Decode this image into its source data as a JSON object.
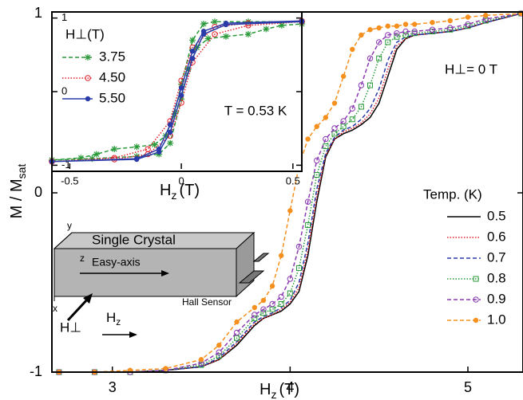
{
  "chart_data": [
    {
      "type": "line",
      "xlabel": {
        "text": "H",
        "sub": "z",
        "unit": "(T)"
      },
      "ylabel": {
        "text": "M / M",
        "sub": "sat"
      },
      "xlim": [
        2.66,
        5.31
      ],
      "ylim": [
        -1,
        1
      ],
      "xticks": [
        3,
        4,
        5
      ],
      "yticks": [
        -1,
        0,
        1
      ],
      "annotation": "H⊥= 0 T",
      "legend_title": "Temp. (K)",
      "diagram": {
        "crystal": "Single Crystal",
        "axis": "Easy-axis",
        "sensor": "Hall Sensor",
        "y": "y",
        "z": "z",
        "x": "x",
        "hperp": "H⊥",
        "hz": "H",
        "hz_sub": "z"
      },
      "x": [
        2.7,
        2.9,
        3.1,
        3.3,
        3.5,
        3.6,
        3.7,
        3.8,
        3.85,
        3.9,
        3.95,
        4.0,
        4.05,
        4.1,
        4.15,
        4.2,
        4.25,
        4.3,
        4.35,
        4.4,
        4.45,
        4.5,
        4.55,
        4.6,
        4.65,
        4.7,
        4.8,
        4.9,
        5.0,
        5.1,
        5.3
      ],
      "series": [
        {
          "name": "0.5",
          "color": "#000000",
          "dash": "solid",
          "marker": "none",
          "values": [
            -1,
            -1,
            -1,
            -0.99,
            -0.97,
            -0.93,
            -0.85,
            -0.74,
            -0.7,
            -0.68,
            -0.66,
            -0.62,
            -0.55,
            -0.35,
            -0.05,
            0.2,
            0.3,
            0.33,
            0.35,
            0.38,
            0.42,
            0.5,
            0.65,
            0.8,
            0.86,
            0.88,
            0.89,
            0.9,
            0.92,
            0.95,
            1.0
          ]
        },
        {
          "name": "0.6",
          "color": "#e0202a",
          "dash": "dotted",
          "marker": "none",
          "values": [
            -1,
            -1,
            -1,
            -0.99,
            -0.97,
            -0.93,
            -0.84,
            -0.73,
            -0.7,
            -0.68,
            -0.65,
            -0.61,
            -0.53,
            -0.32,
            -0.02,
            0.21,
            0.3,
            0.34,
            0.36,
            0.39,
            0.44,
            0.53,
            0.69,
            0.82,
            0.86,
            0.88,
            0.89,
            0.9,
            0.92,
            0.95,
            1.0
          ]
        },
        {
          "name": "0.7",
          "color": "#2a3aa8",
          "dash": "dashed",
          "marker": "none",
          "values": [
            -1,
            -1,
            -1,
            -0.99,
            -0.97,
            -0.92,
            -0.83,
            -0.72,
            -0.69,
            -0.67,
            -0.64,
            -0.6,
            -0.5,
            -0.28,
            0.02,
            0.22,
            0.31,
            0.35,
            0.37,
            0.41,
            0.47,
            0.58,
            0.74,
            0.84,
            0.87,
            0.88,
            0.89,
            0.9,
            0.92,
            0.95,
            1.0
          ]
        },
        {
          "name": "0.8",
          "color": "#2a9a3a",
          "dash": "dotted",
          "marker": "square",
          "values": [
            -1,
            -1,
            -1,
            -0.99,
            -0.96,
            -0.91,
            -0.81,
            -0.7,
            -0.67,
            -0.65,
            -0.62,
            -0.56,
            -0.42,
            -0.18,
            0.1,
            0.26,
            0.33,
            0.37,
            0.41,
            0.48,
            0.6,
            0.75,
            0.84,
            0.87,
            0.88,
            0.89,
            0.9,
            0.91,
            0.93,
            0.96,
            1.0
          ]
        },
        {
          "name": "0.9",
          "color": "#8a3ab0",
          "dash": "dashed",
          "marker": "circle",
          "values": [
            -1,
            -1,
            -1,
            -0.99,
            -0.95,
            -0.89,
            -0.78,
            -0.68,
            -0.65,
            -0.62,
            -0.58,
            -0.48,
            -0.3,
            -0.05,
            0.18,
            0.3,
            0.36,
            0.4,
            0.47,
            0.6,
            0.75,
            0.84,
            0.88,
            0.89,
            0.9,
            0.9,
            0.91,
            0.92,
            0.94,
            0.97,
            1.0
          ]
        },
        {
          "name": "1.0",
          "color": "#f5901e",
          "dash": "dashed",
          "marker": "dot",
          "values": [
            -1,
            -1,
            -0.99,
            -0.98,
            -0.93,
            -0.85,
            -0.72,
            -0.64,
            -0.6,
            -0.52,
            -0.35,
            -0.1,
            0.15,
            0.3,
            0.37,
            0.42,
            0.5,
            0.65,
            0.8,
            0.88,
            0.91,
            0.92,
            0.93,
            0.93,
            0.94,
            0.94,
            0.95,
            0.96,
            0.98,
            0.99,
            1.0
          ]
        }
      ]
    },
    {
      "type": "line",
      "xlabel": {
        "text": "H",
        "sub": "z",
        "unit": "(T)"
      },
      "xlim": [
        -0.58,
        0.54
      ],
      "ylim": [
        -1.05,
        1.05
      ],
      "xticks": [
        -0.5,
        0,
        0.5
      ],
      "yticks": [
        -1,
        0,
        1
      ],
      "annotation": "T = 0.53 K",
      "legend_title": "H⊥(T)",
      "series": [
        {
          "name": "3.75",
          "color": "#2a9a3a",
          "dash": "dashed",
          "marker": "star",
          "x": [
            -0.58,
            -0.4,
            -0.2,
            -0.1,
            -0.05,
            0,
            0.03,
            0.07,
            0.12,
            0.2,
            0.3,
            0.38,
            0.45,
            0.54,
            0.54,
            0.3,
            0.15,
            0.1,
            0.05,
            0,
            -0.03,
            -0.07,
            -0.12,
            -0.2,
            -0.3,
            -0.38,
            -0.45,
            -0.58
          ],
          "values": [
            -0.93,
            -0.91,
            -0.88,
            -0.85,
            -0.7,
            -0.1,
            0.3,
            0.6,
            0.72,
            0.75,
            0.78,
            0.85,
            0.9,
            0.92,
            0.95,
            0.95,
            0.95,
            0.92,
            0.7,
            0.1,
            -0.3,
            -0.6,
            -0.72,
            -0.75,
            -0.78,
            -0.85,
            -0.9,
            -0.93
          ]
        },
        {
          "name": "4.50",
          "color": "#e0202a",
          "dash": "dotted",
          "marker": "circle",
          "x": [
            -0.58,
            -0.3,
            -0.15,
            -0.05,
            0,
            0.05,
            0.15,
            0.3,
            0.54,
            0.54,
            0.3,
            0.15,
            0.05,
            0,
            -0.05,
            -0.15,
            -0.3,
            -0.58
          ],
          "values": [
            -0.95,
            -0.92,
            -0.85,
            -0.6,
            -0.15,
            0.4,
            0.78,
            0.9,
            0.95,
            0.96,
            0.93,
            0.88,
            0.6,
            0.15,
            -0.4,
            -0.78,
            -0.9,
            -0.95
          ]
        },
        {
          "name": "5.50",
          "color": "#2a3aa8",
          "dash": "solid",
          "marker": "dot",
          "x": [
            -0.58,
            -0.2,
            -0.1,
            -0.05,
            0,
            0.05,
            0.1,
            0.2,
            0.54,
            0.54,
            0.2,
            0.1,
            0.05,
            0,
            -0.05,
            -0.1,
            -0.2,
            -0.58
          ],
          "values": [
            -0.95,
            -0.92,
            -0.82,
            -0.55,
            -0.05,
            0.45,
            0.78,
            0.91,
            0.95,
            0.96,
            0.93,
            0.82,
            0.55,
            0.05,
            -0.45,
            -0.78,
            -0.91,
            -0.95
          ]
        }
      ]
    }
  ]
}
